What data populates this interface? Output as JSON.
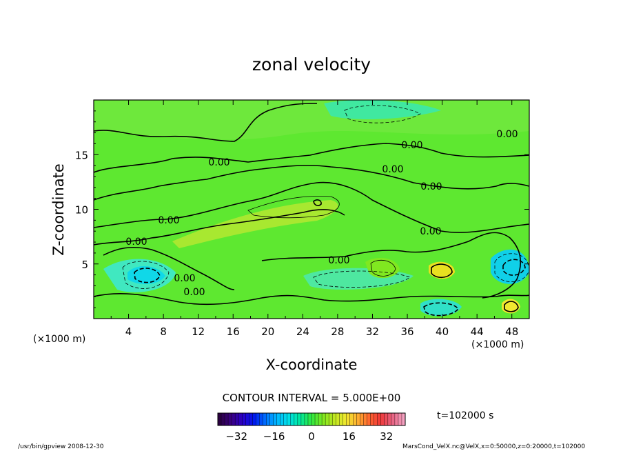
{
  "chart_data": {
    "type": "heatmap",
    "title": "zonal velocity",
    "xlabel": "X-coordinate",
    "ylabel": "Z-coordinate",
    "x_unit": "(×1000 m)",
    "y_unit": "(×1000 m)",
    "xlim": [
      0,
      50
    ],
    "ylim": [
      0,
      20
    ],
    "x_ticks": [
      4,
      8,
      12,
      16,
      20,
      24,
      28,
      32,
      36,
      40,
      44,
      48
    ],
    "y_ticks": [
      5,
      10,
      15
    ],
    "contour_interval_text": "CONTOUR INTERVAL = 5.000E+00",
    "contour_labels": [
      "0.00",
      "0.00",
      "0.00",
      "0.00",
      "0.00",
      "0.00",
      "0.00",
      "0.00",
      "0.00",
      "0.00",
      "0.00"
    ],
    "colorbar": {
      "range": [
        -40,
        40
      ],
      "ticks": [
        -32,
        -16,
        0,
        16,
        32
      ],
      "colors": [
        "#2a0040",
        "#3a0080",
        "#2a00c8",
        "#0018f0",
        "#0070ff",
        "#00b8ff",
        "#00e0e8",
        "#00e8a0",
        "#30e840",
        "#80e820",
        "#c0e820",
        "#f0e830",
        "#ffb030",
        "#ff6830",
        "#f03838",
        "#e86080",
        "#f4a0c0"
      ]
    },
    "time_label": "t=102000 s",
    "grid": false
  },
  "footer": {
    "left": "/usr/bin/gpview   2008-12-30",
    "right": "MarsCond_VelX.nc@VelX,x=0:50000,z=0:20000,t=102000"
  }
}
